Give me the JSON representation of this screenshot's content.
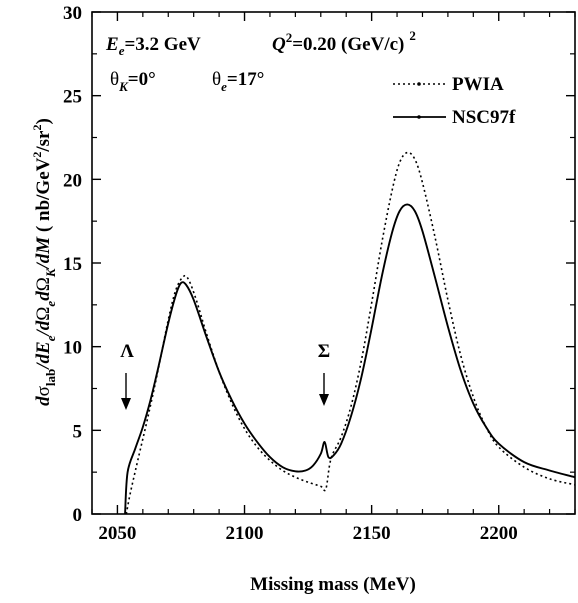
{
  "chart_data": {
    "type": "line",
    "xlabel": "Missing mass (MeV)",
    "ylabel_parts": [
      "d",
      "σ",
      "lab",
      "/dE",
      "e",
      "/d",
      "Ω",
      "e",
      "d",
      "Ω",
      "K",
      "/dM",
      "  ( nb/GeV",
      "2",
      "/sr",
      "2",
      ")"
    ],
    "xlim": [
      2040,
      2230
    ],
    "ylim": [
      0,
      30
    ],
    "x_ticks": [
      2050,
      2100,
      2150,
      2200
    ],
    "y_ticks": [
      0,
      5,
      10,
      15,
      20,
      25,
      30
    ],
    "annotations": {
      "line1": {
        "E": "E",
        "e_sub": "e",
        "energy": "=3.2 GeV",
        "Q": "Q",
        "q_sup": "2",
        "q_val": "=0.20 (GeV/c)",
        "q_unit_sup": "2"
      },
      "line2": {
        "thetaK": "θ",
        "k_sub": "K",
        "thetaK_val": "=0°",
        "thetaE": "θ",
        "e_sub": "e",
        "thetaE_val": "=17°"
      },
      "lambda_label": "Λ",
      "sigma_label": "Σ"
    },
    "legend_position": "top-right",
    "series": [
      {
        "name": "PWIA",
        "style": "dotted",
        "color": "#000000",
        "points": [
          [
            2053.5,
            0
          ],
          [
            2055,
            1.2
          ],
          [
            2058,
            3.2
          ],
          [
            2062,
            5.8
          ],
          [
            2066,
            8.6
          ],
          [
            2070,
            11.6
          ],
          [
            2073,
            13.4
          ],
          [
            2076,
            14.2
          ],
          [
            2078,
            14.0
          ],
          [
            2081,
            12.8
          ],
          [
            2085,
            10.8
          ],
          [
            2090,
            8.5
          ],
          [
            2095,
            6.6
          ],
          [
            2100,
            5.1
          ],
          [
            2105,
            4.0
          ],
          [
            2110,
            3.2
          ],
          [
            2115,
            2.6
          ],
          [
            2120,
            2.2
          ],
          [
            2125,
            1.9
          ],
          [
            2130,
            1.65
          ],
          [
            2132,
            1.5
          ],
          [
            2134,
            3.3
          ],
          [
            2138,
            4.6
          ],
          [
            2142,
            6.5
          ],
          [
            2146,
            9.2
          ],
          [
            2150,
            12.6
          ],
          [
            2154,
            16.2
          ],
          [
            2158,
            19.3
          ],
          [
            2161,
            21.0
          ],
          [
            2164,
            21.6
          ],
          [
            2167,
            21.2
          ],
          [
            2170,
            19.8
          ],
          [
            2175,
            16.5
          ],
          [
            2180,
            12.8
          ],
          [
            2185,
            9.5
          ],
          [
            2190,
            7.0
          ],
          [
            2195,
            5.2
          ],
          [
            2200,
            4.0
          ],
          [
            2210,
            2.8
          ],
          [
            2220,
            2.1
          ],
          [
            2230,
            1.75
          ]
        ]
      },
      {
        "name": "NSC97f",
        "style": "solid",
        "color": "#000000",
        "points": [
          [
            2053,
            0
          ],
          [
            2054,
            2.5
          ],
          [
            2057,
            3.9
          ],
          [
            2060,
            5.2
          ],
          [
            2063,
            6.8
          ],
          [
            2066,
            8.7
          ],
          [
            2070,
            11.4
          ],
          [
            2073,
            13.1
          ],
          [
            2075,
            13.8
          ],
          [
            2077,
            13.7
          ],
          [
            2080,
            12.8
          ],
          [
            2085,
            10.6
          ],
          [
            2090,
            8.5
          ],
          [
            2095,
            6.8
          ],
          [
            2100,
            5.4
          ],
          [
            2105,
            4.3
          ],
          [
            2110,
            3.4
          ],
          [
            2115,
            2.8
          ],
          [
            2120,
            2.55
          ],
          [
            2124,
            2.6
          ],
          [
            2127,
            2.9
          ],
          [
            2130,
            3.6
          ],
          [
            2131.5,
            4.3
          ],
          [
            2133,
            3.4
          ],
          [
            2135,
            3.5
          ],
          [
            2138,
            4.2
          ],
          [
            2142,
            5.9
          ],
          [
            2146,
            8.2
          ],
          [
            2150,
            11.1
          ],
          [
            2154,
            14.2
          ],
          [
            2158,
            16.8
          ],
          [
            2161,
            18.1
          ],
          [
            2164,
            18.5
          ],
          [
            2167,
            18.1
          ],
          [
            2170,
            16.9
          ],
          [
            2175,
            14.1
          ],
          [
            2180,
            11.2
          ],
          [
            2185,
            8.6
          ],
          [
            2190,
            6.6
          ],
          [
            2195,
            5.2
          ],
          [
            2200,
            4.2
          ],
          [
            2210,
            3.1
          ],
          [
            2220,
            2.6
          ],
          [
            2230,
            2.2
          ]
        ]
      }
    ]
  }
}
